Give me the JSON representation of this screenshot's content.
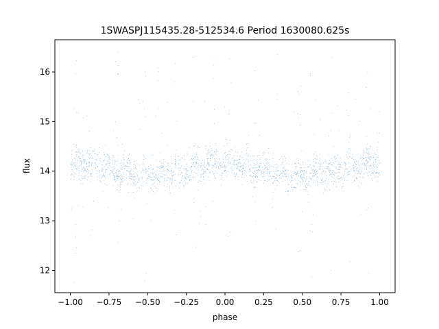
{
  "chart_data": {
    "type": "scatter",
    "title": "1SWASPJ115435.28-512534.6 Period 1630080.625s",
    "xlabel": "phase",
    "ylabel": "flux",
    "xlim": [
      -1.1,
      1.1
    ],
    "ylim": [
      11.55,
      16.65
    ],
    "xticks": [
      -1.0,
      -0.75,
      -0.5,
      -0.25,
      0.0,
      0.25,
      0.5,
      0.75,
      1.0
    ],
    "xtick_labels": [
      "−1.00",
      "−0.75",
      "−0.50",
      "−0.25",
      "0.00",
      "0.25",
      "0.50",
      "0.75",
      "1.00"
    ],
    "yticks": [
      12,
      13,
      14,
      15,
      16
    ],
    "ytick_labels": [
      "12",
      "13",
      "14",
      "15",
      "16"
    ],
    "grid": false,
    "marker_color": "#1f77b4",
    "series": [
      {
        "phase_range": [
          -1.0,
          1.0
        ],
        "flux_median": 14.05,
        "flux_core_range": [
          13.4,
          14.7
        ],
        "flux_extreme_range": [
          11.7,
          16.4
        ],
        "approx_point_count": 24000
      }
    ]
  }
}
